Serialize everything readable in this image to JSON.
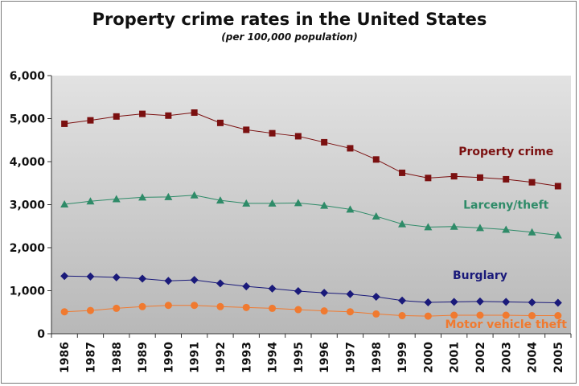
{
  "title": "Property crime rates in the United States",
  "subtitle": "(per 100,000 population)",
  "chart_data": {
    "type": "line",
    "title": "Property crime rates in the United States",
    "subtitle": "(per 100,000 population)",
    "xlabel": "",
    "ylabel": "",
    "ylim": [
      0,
      6000
    ],
    "yticks": [
      "0",
      "1,000",
      "2,000",
      "3,000",
      "4,000",
      "5,000",
      "6,000"
    ],
    "yticks_values": [
      0,
      1000,
      2000,
      3000,
      4000,
      5000,
      6000
    ],
    "x": [
      "1986",
      "1987",
      "1988",
      "1989",
      "1990",
      "1991",
      "1992",
      "1993",
      "1994",
      "1995",
      "1996",
      "1997",
      "1998",
      "1999",
      "2000",
      "2001",
      "2002",
      "2003",
      "2004",
      "2005"
    ],
    "grid": false,
    "legend": "inline labels",
    "series": [
      {
        "name": "Property crime",
        "color": "#7b1010",
        "marker": "square",
        "values": [
          4880,
          4960,
          5050,
          5110,
          5070,
          5140,
          4900,
          4740,
          4660,
          4590,
          4450,
          4310,
          4050,
          3740,
          3620,
          3660,
          3630,
          3590,
          3520,
          3430
        ]
      },
      {
        "name": "Larceny/theft",
        "color": "#2e8b68",
        "marker": "triangle",
        "values": [
          3010,
          3080,
          3130,
          3170,
          3180,
          3220,
          3100,
          3030,
          3030,
          3040,
          2980,
          2890,
          2730,
          2550,
          2480,
          2490,
          2460,
          2420,
          2360,
          2290
        ]
      },
      {
        "name": "Burglary",
        "color": "#1a1a7a",
        "marker": "diamond",
        "values": [
          1340,
          1330,
          1310,
          1280,
          1230,
          1250,
          1170,
          1100,
          1050,
          990,
          950,
          920,
          860,
          770,
          730,
          740,
          750,
          740,
          730,
          720
        ]
      },
      {
        "name": "Motor vehicle theft",
        "color": "#f07a30",
        "marker": "circle",
        "values": [
          510,
          540,
          590,
          630,
          660,
          660,
          630,
          610,
          590,
          560,
          530,
          510,
          460,
          420,
          410,
          430,
          430,
          430,
          420,
          420
        ]
      }
    ]
  }
}
